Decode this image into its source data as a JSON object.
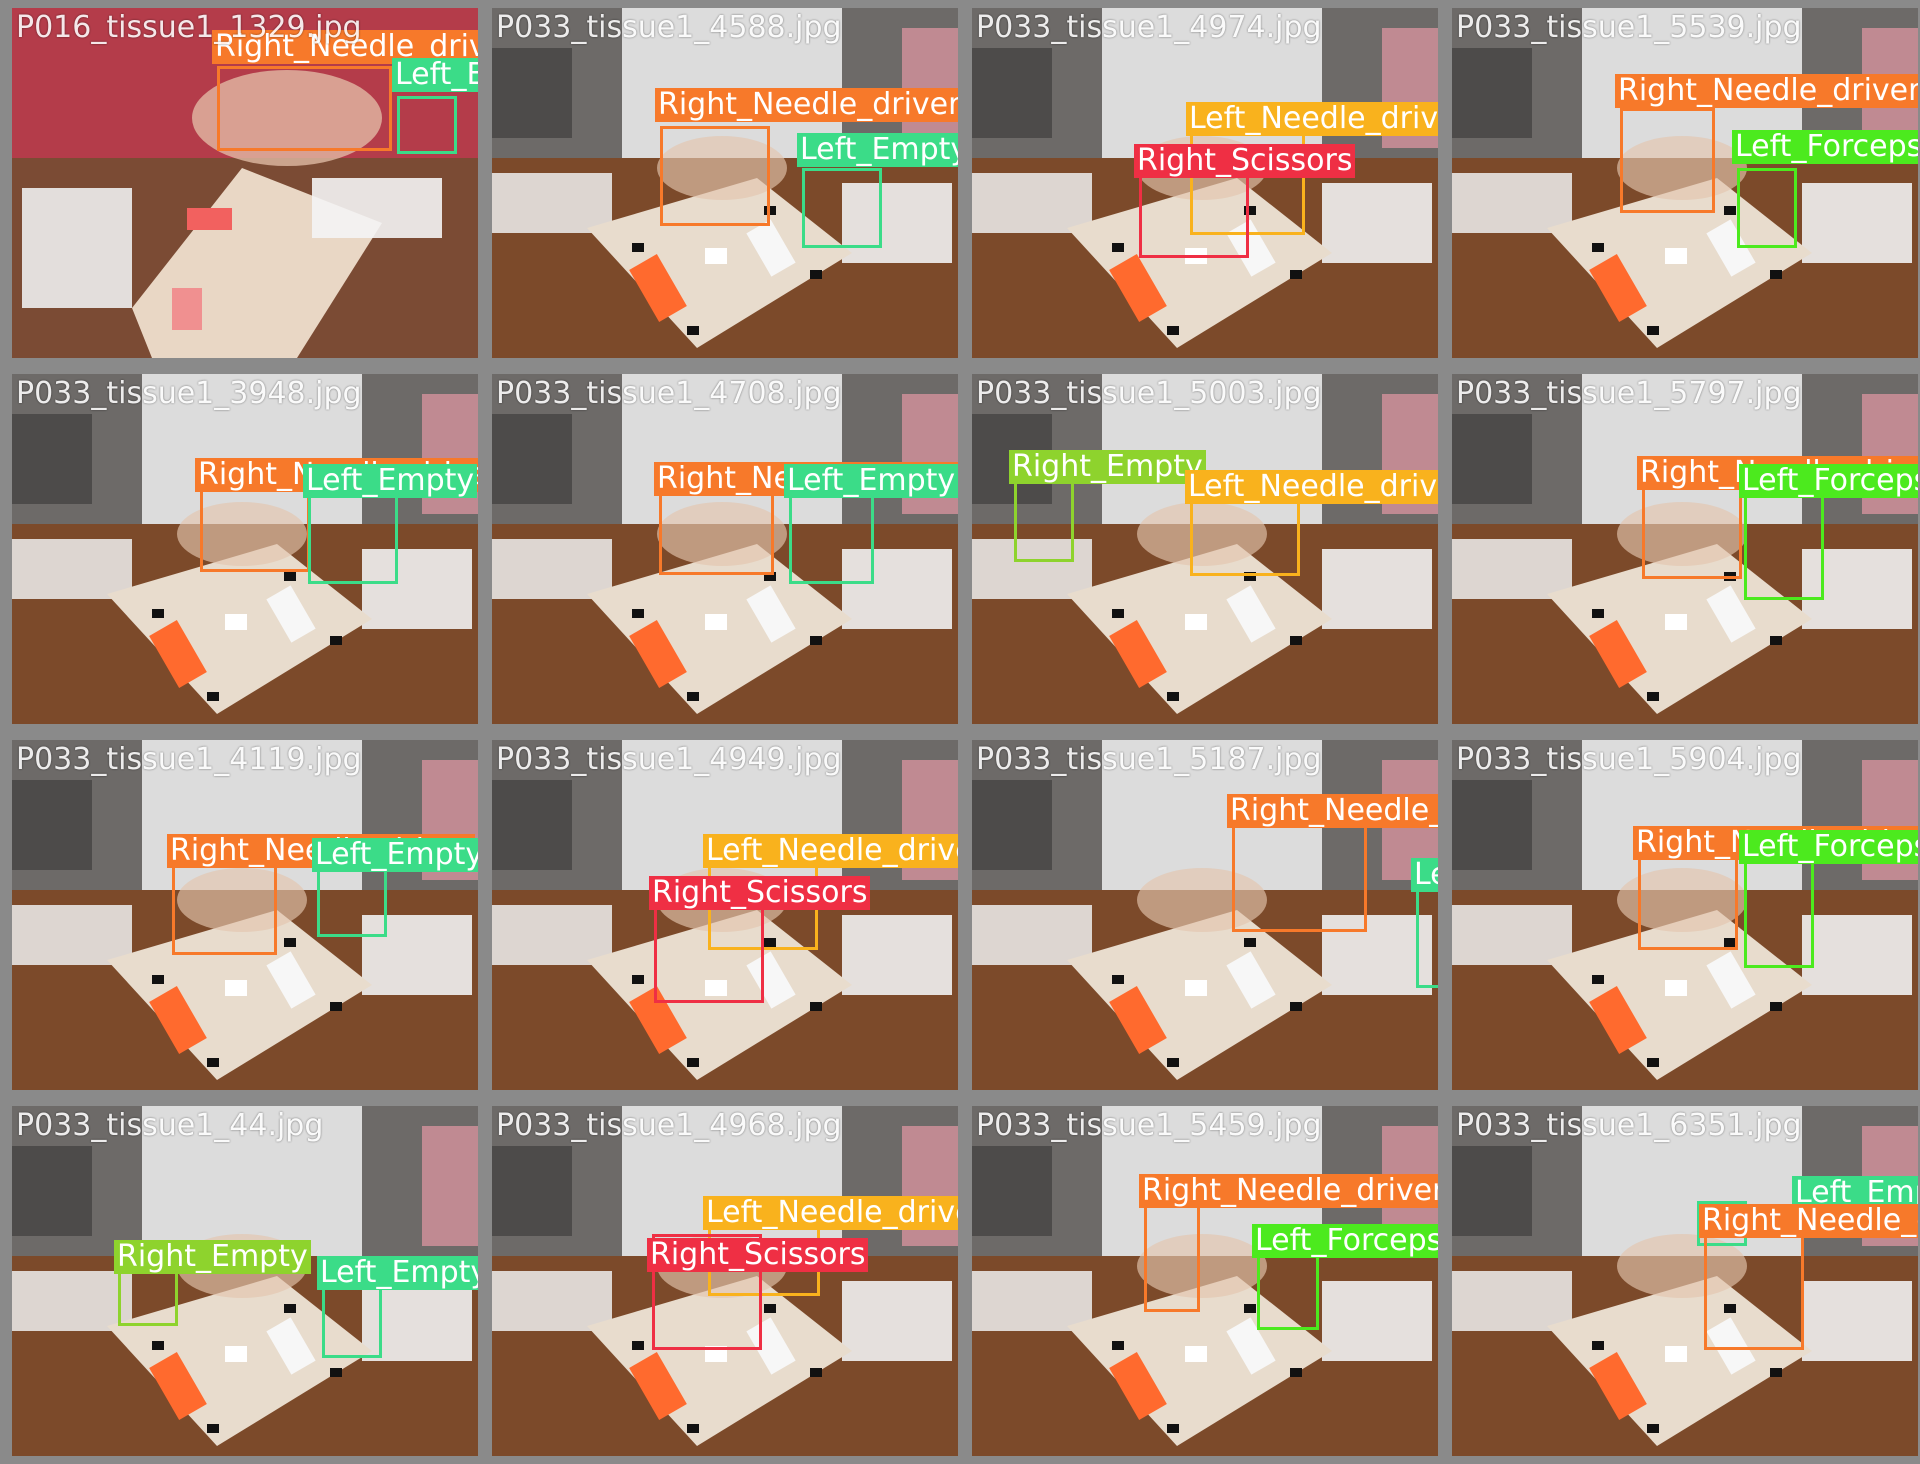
{
  "colors": {
    "Right_Needle_driver": "#f7792a",
    "Left_Empty": "#3bdc88",
    "Left_Needle_driver": "#f9b21d",
    "Right_Scissors": "#ef2f44",
    "Left_Forceps": "#4cea1e",
    "Right_Empty": "#8ed32d"
  },
  "tiles": [
    {
      "file": "P016_tissue1_1329.jpg",
      "variant": "red"
    },
    {
      "file": "P033_tissue1_4588.jpg",
      "variant": "lab"
    },
    {
      "file": "P033_tissue1_4974.jpg",
      "variant": "lab"
    },
    {
      "file": "P033_tissue1_5539.jpg",
      "variant": "lab"
    },
    {
      "file": "P033_tissue1_3948.jpg",
      "variant": "lab"
    },
    {
      "file": "P033_tissue1_4708.jpg",
      "variant": "lab"
    },
    {
      "file": "P033_tissue1_5003.jpg",
      "variant": "lab"
    },
    {
      "file": "P033_tissue1_5797.jpg",
      "variant": "lab"
    },
    {
      "file": "P033_tissue1_4119.jpg",
      "variant": "lab"
    },
    {
      "file": "P033_tissue1_4949.jpg",
      "variant": "lab"
    },
    {
      "file": "P033_tissue1_5187.jpg",
      "variant": "lab"
    },
    {
      "file": "P033_tissue1_5904.jpg",
      "variant": "lab"
    },
    {
      "file": "P033_tissue1_44.jpg",
      "variant": "lab"
    },
    {
      "file": "P033_tissue1_4968.jpg",
      "variant": "lab"
    },
    {
      "file": "P033_tissue1_5459.jpg",
      "variant": "lab"
    },
    {
      "file": "P033_tissue1_6351.jpg",
      "variant": "lab"
    }
  ],
  "labels": [
    [
      "Right_Needle_driver",
      "Left_Empty"
    ],
    [
      "Right_Needle_driver",
      "Left_Empty"
    ],
    [
      "Left_Needle_driver",
      "Right_Scissors"
    ],
    [
      "Right_Needle_driver",
      "Left_Forceps"
    ],
    [
      "Right_Needle_driver",
      "Left_Empty"
    ],
    [
      "Right_Needle_driver",
      "Left_Empty"
    ],
    [
      "Right_Empty",
      "Left_Needle_driver"
    ],
    [
      "Right_Needle_driver",
      "Left_Forceps"
    ],
    [
      "Right_Needle_driver",
      "Left_Empty"
    ],
    [
      "Left_Needle_driver",
      "Right_Scissors"
    ],
    [
      "Right_Needle_driver",
      "Left_Empty"
    ],
    [
      "Right_Needle_driver",
      "Left_Forceps"
    ],
    [
      "Right_Empty",
      "Left_Empty"
    ],
    [
      "Left_Needle_driver",
      "Right_Scissors"
    ],
    [
      "Right_Needle_driver",
      "Left_Forceps"
    ],
    [
      "Left_Empty",
      "Right_Needle_driver"
    ]
  ]
}
